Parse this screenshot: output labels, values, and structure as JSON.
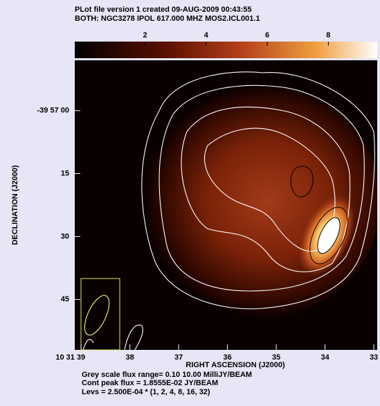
{
  "chart_data": {
    "type": "contour",
    "header": [
      "PLot file version 1  created 09-AUG-2009 00:43:55",
      "BOTH: NGC3278  IPOL  617.000 MHZ  MOS2.ICL001.1"
    ],
    "x_label": "RIGHT ASCENSION (J2000)",
    "y_label": "DECLINATION (J2000)",
    "xlim": [
      39.13,
      32.93
    ],
    "xticks": [
      {
        "value": 39,
        "label": "10 31 39"
      },
      38,
      37,
      36,
      35,
      34,
      33
    ],
    "ylim": [
      -12,
      57
    ],
    "yticks": [
      {
        "value": 0,
        "label": "-39 57 00"
      },
      15,
      30,
      45
    ],
    "clim": [
      -0.3,
      9.6
    ],
    "cticks": [
      2,
      4,
      6,
      8
    ],
    "footer": [
      "Grey scale flux range= 0.10 10.00 MilliJY/BEAM",
      "Cont peak flux =  1.8555E-02 JY/BEAM",
      "Levs = 2.500E-04 * (1, 2, 4, 8, 16, 32)"
    ]
  }
}
